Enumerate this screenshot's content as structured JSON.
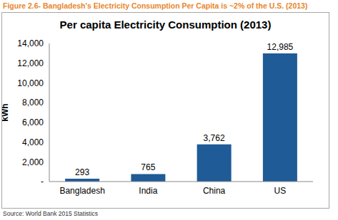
{
  "chart_data": {
    "type": "bar",
    "figure_caption": "Figure 2.6- Bangladesh's Electricity Consumption Per Capita is ~2% of the U.S. (2013)",
    "title": "Per capita Electricity Consumption (2013)",
    "y_label": "kWh",
    "categories": [
      "Bangladesh",
      "India",
      "China",
      "US"
    ],
    "values": [
      293,
      765,
      3762,
      12985
    ],
    "value_labels": [
      "293",
      "765",
      "3,762",
      "12,985"
    ],
    "data_labels": true,
    "color": "#1f5b96",
    "ylim": [
      0,
      14000
    ],
    "yticks": [
      {
        "value": 0,
        "label": "-"
      },
      {
        "value": 2000,
        "label": "2,000"
      },
      {
        "value": 4000,
        "label": "4,000"
      },
      {
        "value": 6000,
        "label": "6,000"
      },
      {
        "value": 8000,
        "label": "8,000"
      },
      {
        "value": 10000,
        "label": "10,000"
      },
      {
        "value": 12000,
        "label": "12,000"
      },
      {
        "value": 14000,
        "label": "14,000"
      }
    ],
    "grid": false,
    "source": "Source: World Bank 2015 Statistics"
  }
}
